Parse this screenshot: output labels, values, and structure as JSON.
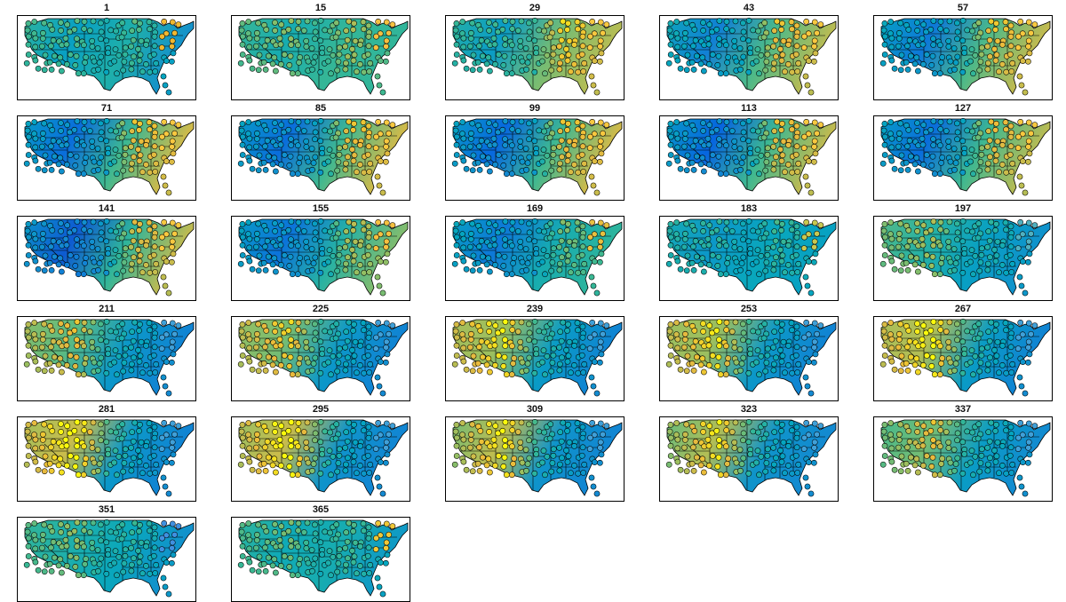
{
  "panels": [
    {
      "label": "1",
      "bg": [
        0.55,
        0.4,
        0.5,
        0.3
      ],
      "east": "#f0b830"
    },
    {
      "label": "15",
      "bg": [
        0.58,
        0.48,
        0.56,
        0.55
      ],
      "east": "#f5c040"
    },
    {
      "label": "29",
      "bg": [
        0.52,
        0.38,
        0.66,
        0.78
      ],
      "east": "#f8c840"
    },
    {
      "label": "43",
      "bg": [
        0.45,
        0.25,
        0.6,
        0.8
      ],
      "east": "#f8c840"
    },
    {
      "label": "57",
      "bg": [
        0.42,
        0.22,
        0.6,
        0.82
      ],
      "east": "#f8c840"
    },
    {
      "label": "71",
      "bg": [
        0.4,
        0.18,
        0.58,
        0.85
      ],
      "east": "#f8c840"
    },
    {
      "label": "85",
      "bg": [
        0.4,
        0.18,
        0.58,
        0.85
      ],
      "east": "#f8c840"
    },
    {
      "label": "99",
      "bg": [
        0.4,
        0.16,
        0.58,
        0.85
      ],
      "east": "#f8c840"
    },
    {
      "label": "113",
      "bg": [
        0.4,
        0.15,
        0.58,
        0.82
      ],
      "east": "#f8c840"
    },
    {
      "label": "127",
      "bg": [
        0.4,
        0.18,
        0.58,
        0.8
      ],
      "east": "#f8c840"
    },
    {
      "label": "141",
      "bg": [
        0.36,
        0.12,
        0.55,
        0.82
      ],
      "east": "#f8c840"
    },
    {
      "label": "155",
      "bg": [
        0.4,
        0.2,
        0.52,
        0.7
      ],
      "east": "#f5c040"
    },
    {
      "label": "169",
      "bg": [
        0.42,
        0.22,
        0.48,
        0.55
      ],
      "east": "#e8c040"
    },
    {
      "label": "183",
      "bg": [
        0.48,
        0.36,
        0.44,
        0.4
      ],
      "east": "#c8c850"
    },
    {
      "label": "197",
      "bg": [
        0.62,
        0.52,
        0.4,
        0.32
      ],
      "east": "#50b0c0"
    },
    {
      "label": "211",
      "bg": [
        0.7,
        0.62,
        0.36,
        0.25
      ],
      "east": "#40a0d8"
    },
    {
      "label": "225",
      "bg": [
        0.72,
        0.66,
        0.36,
        0.25
      ],
      "east": "#40a0d8"
    },
    {
      "label": "239",
      "bg": [
        0.74,
        0.72,
        0.38,
        0.25
      ],
      "east": "#40a0d8"
    },
    {
      "label": "253",
      "bg": [
        0.72,
        0.72,
        0.36,
        0.25
      ],
      "east": "#40a0d8"
    },
    {
      "label": "267",
      "bg": [
        0.74,
        0.76,
        0.38,
        0.25
      ],
      "east": "#40a0d8"
    },
    {
      "label": "281",
      "bg": [
        0.72,
        0.8,
        0.36,
        0.25
      ],
      "east": "#40a0d8"
    },
    {
      "label": "295",
      "bg": [
        0.7,
        0.8,
        0.34,
        0.26
      ],
      "east": "#40a0d8"
    },
    {
      "label": "309",
      "bg": [
        0.64,
        0.78,
        0.34,
        0.26
      ],
      "east": "#40a0d8"
    },
    {
      "label": "323",
      "bg": [
        0.62,
        0.76,
        0.34,
        0.28
      ],
      "east": "#40a0d8"
    },
    {
      "label": "337",
      "bg": [
        0.58,
        0.66,
        0.38,
        0.28
      ],
      "east": "#40a0d8"
    },
    {
      "label": "351",
      "bg": [
        0.56,
        0.5,
        0.44,
        0.3
      ],
      "east": "#4090e0"
    },
    {
      "label": "365",
      "bg": [
        0.56,
        0.46,
        0.48,
        0.35
      ],
      "east": "#f0c838"
    }
  ]
}
